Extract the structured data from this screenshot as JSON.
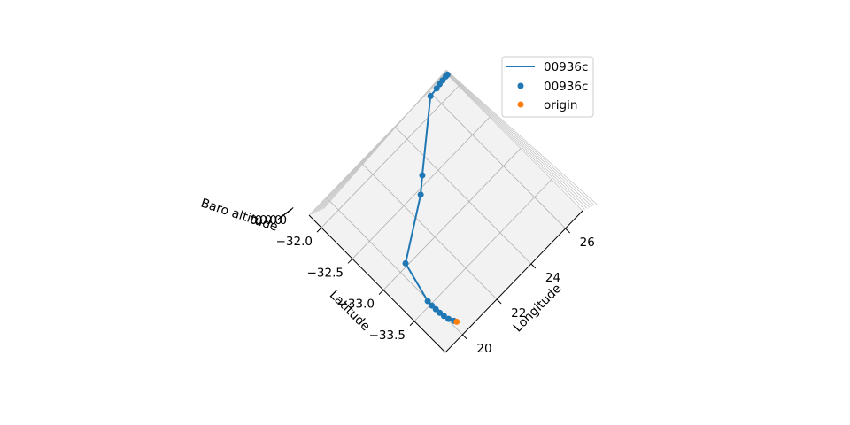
{
  "chart_data": {
    "type": "scatter",
    "projection": "3d",
    "title": "",
    "xlabel": "Longitude",
    "ylabel": "Latitude",
    "zlabel": "Baro altitude",
    "xlim": [
      19,
      27
    ],
    "ylim": [
      -34,
      -31.8
    ],
    "x_ticks": [
      20,
      22,
      24,
      26
    ],
    "y_ticks": [
      -32.0,
      -32.5,
      -33.0,
      -33.5
    ],
    "x_tick_labels": [
      "20",
      "22",
      "24",
      "26"
    ],
    "y_tick_labels": [
      "−32.0",
      "−32.5",
      "−33.0",
      "−33.5"
    ],
    "z_tick_labels_overlapping": "0000000",
    "grid": true,
    "legend_position": "upper right",
    "colors": {
      "series": "#1f77b4",
      "origin": "#ff7f0e",
      "pane": "#f2f2f2",
      "grid": "#b0b0b0"
    },
    "legend": [
      {
        "label": "00936c",
        "kind": "line",
        "color": "#1f77b4"
      },
      {
        "label": "00936c",
        "kind": "marker",
        "color": "#1f77b4"
      },
      {
        "label": "origin",
        "kind": "marker",
        "color": "#ff7f0e"
      }
    ],
    "series": [
      {
        "name": "00936c",
        "kind": "line+markers",
        "color": "#1f77b4",
        "points": [
          {
            "lon": 20.15,
            "lat": -33.82
          },
          {
            "lon": 20.05,
            "lat": -33.76
          },
          {
            "lon": 20.0,
            "lat": -33.7
          },
          {
            "lon": 19.97,
            "lat": -33.64
          },
          {
            "lon": 19.96,
            "lat": -33.58
          },
          {
            "lon": 19.95,
            "lat": -33.52
          },
          {
            "lon": 19.96,
            "lat": -33.45
          },
          {
            "lon": 20.4,
            "lat": -32.97
          },
          {
            "lon": 22.8,
            "lat": -32.55
          },
          {
            "lon": 23.4,
            "lat": -32.41
          },
          {
            "lon": 25.9,
            "lat": -31.85
          },
          {
            "lon": 26.3,
            "lat": -31.84
          },
          {
            "lon": 26.5,
            "lat": -31.83
          },
          {
            "lon": 26.7,
            "lat": -31.825
          },
          {
            "lon": 26.9,
            "lat": -31.82
          },
          {
            "lon": 27.0,
            "lat": -31.82
          }
        ]
      },
      {
        "name": "origin",
        "kind": "marker",
        "color": "#ff7f0e",
        "points": [
          {
            "lon": 20.2,
            "lat": -33.85
          }
        ]
      }
    ]
  }
}
